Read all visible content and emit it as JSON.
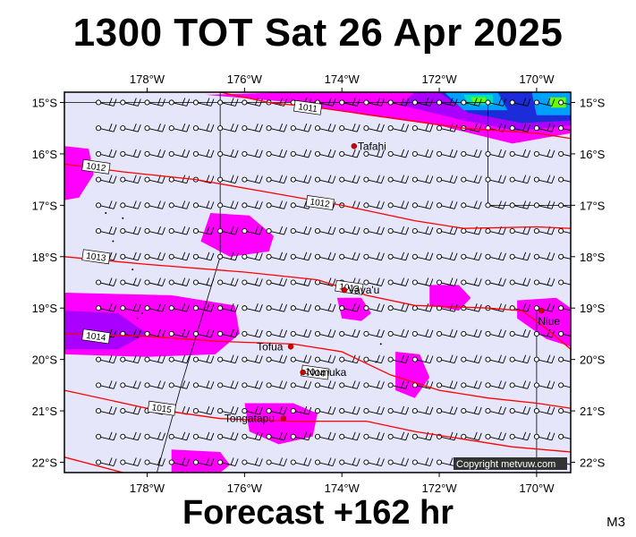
{
  "title": "1300 TOT Sat 26 Apr 2025",
  "footer": "Forecast +162 hr",
  "model_code": "M3",
  "copyright": "Copyright metvuw.com",
  "map": {
    "lon_range": [
      -179.7,
      -169.3
    ],
    "lat_range": [
      -22.2,
      -14.8
    ],
    "lon_ticks": [
      {
        "value": -178,
        "label": "178°W"
      },
      {
        "value": -176,
        "label": "176°W"
      },
      {
        "value": -174,
        "label": "174°W"
      },
      {
        "value": -172,
        "label": "172°W"
      },
      {
        "value": -170,
        "label": "170°W"
      }
    ],
    "lat_ticks": [
      {
        "value": -15,
        "label": "15°S"
      },
      {
        "value": -16,
        "label": "16°S"
      },
      {
        "value": -17,
        "label": "17°S"
      },
      {
        "value": -18,
        "label": "18°S"
      },
      {
        "value": -19,
        "label": "19°S"
      },
      {
        "value": -20,
        "label": "20°S"
      },
      {
        "value": -21,
        "label": "21°S"
      },
      {
        "value": -22,
        "label": "22°S"
      }
    ],
    "background_color": "#e6e6fa",
    "isobar_color": "#ff0000",
    "isobars": [
      {
        "label": "1011",
        "pressure": 1011,
        "points": [
          [
            -176.5,
            -14.8
          ],
          [
            -175.5,
            -15.0
          ],
          [
            -174.5,
            -15.1
          ],
          [
            -173.0,
            -15.3
          ],
          [
            -171.5,
            -15.5
          ],
          [
            -170.0,
            -15.6
          ],
          [
            -169.3,
            -15.7
          ]
        ]
      },
      {
        "label": "1012",
        "pressure": 1012,
        "points": [
          [
            -179.7,
            -16.2
          ],
          [
            -178.5,
            -16.35
          ],
          [
            -177.0,
            -16.5
          ],
          [
            -175.5,
            -16.75
          ],
          [
            -174.0,
            -17.0
          ],
          [
            -172.5,
            -17.3
          ],
          [
            -171.5,
            -17.45
          ],
          [
            -170.0,
            -17.42
          ],
          [
            -169.3,
            -17.45
          ]
        ]
      },
      {
        "label": "1013",
        "pressure": 1013,
        "points": [
          [
            -179.7,
            -18.0
          ],
          [
            -178.0,
            -18.15
          ],
          [
            -176.0,
            -18.3
          ],
          [
            -174.5,
            -18.45
          ],
          [
            -173.5,
            -18.75
          ],
          [
            -172.5,
            -18.95
          ],
          [
            -171.0,
            -19.0
          ],
          [
            -170.3,
            -19.05
          ],
          [
            -169.8,
            -19.4
          ],
          [
            -169.3,
            -19.8
          ]
        ]
      },
      {
        "label": "1014",
        "pressure": 1014,
        "points": [
          [
            -179.7,
            -19.5
          ],
          [
            -178.0,
            -19.55
          ],
          [
            -176.5,
            -19.65
          ],
          [
            -175.0,
            -19.7
          ],
          [
            -174.0,
            -19.85
          ],
          [
            -173.0,
            -20.3
          ],
          [
            -172.0,
            -20.6
          ],
          [
            -171.0,
            -20.75
          ],
          [
            -170.0,
            -20.85
          ],
          [
            -169.3,
            -20.95
          ]
        ]
      },
      {
        "label": "1015",
        "pressure": 1015,
        "points": [
          [
            -179.7,
            -20.6
          ],
          [
            -178.0,
            -20.95
          ],
          [
            -176.5,
            -21.15
          ],
          [
            -175.0,
            -21.2
          ],
          [
            -173.5,
            -21.2
          ],
          [
            -172.5,
            -21.4
          ],
          [
            -171.5,
            -21.55
          ],
          [
            -170.5,
            -21.7
          ],
          [
            -169.3,
            -21.8
          ]
        ]
      },
      {
        "label": "",
        "pressure": 1016,
        "points": [
          [
            -179.7,
            -21.9
          ],
          [
            -178.5,
            -22.2
          ]
        ]
      }
    ],
    "isobar_labels": [
      {
        "text": "1011",
        "lon": -174.7,
        "lat": -15.1
      },
      {
        "text": "1012",
        "lon": -179.05,
        "lat": -16.25
      },
      {
        "text": "1012",
        "lon": -174.45,
        "lat": -16.95
      },
      {
        "text": "1013",
        "lon": -179.05,
        "lat": -18.0
      },
      {
        "text": "1013",
        "lon": -173.85,
        "lat": -18.6
      },
      {
        "text": "1014",
        "lon": -179.05,
        "lat": -19.55
      },
      {
        "text": "1014",
        "lon": -174.55,
        "lat": -20.25
      },
      {
        "text": "1015",
        "lon": -177.7,
        "lat": -20.95
      }
    ],
    "places": [
      {
        "name": "Tafahi",
        "lon": -173.75,
        "lat": -15.85
      },
      {
        "name": "Vava'u",
        "lon": -173.95,
        "lat": -18.65
      },
      {
        "name": "Tofua",
        "lon": -175.05,
        "lat": -19.75
      },
      {
        "name": "Nomuka",
        "lon": -174.8,
        "lat": -20.25
      },
      {
        "name": "Tongatapu",
        "lon": -175.2,
        "lat": -21.15
      },
      {
        "name": "Niue",
        "lon": -169.9,
        "lat": -19.05
      }
    ],
    "precip_legend_colors": [
      "#ff00ff",
      "#aa00ff",
      "#1c2cd8",
      "#00a0ff",
      "#00e0c0",
      "#66ff00"
    ]
  }
}
